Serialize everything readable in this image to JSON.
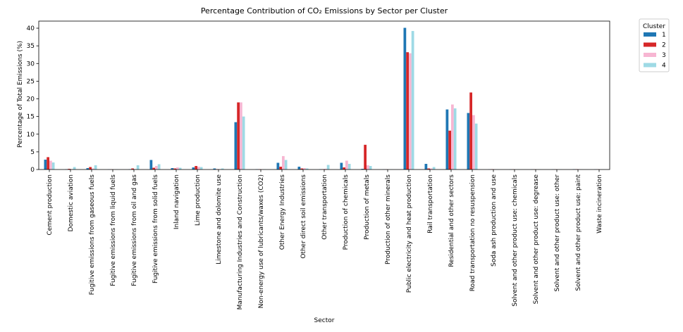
{
  "chart_data": {
    "type": "bar",
    "title": "Percentage Contribution of CO₂ Emissions by Sector per Cluster",
    "xlabel": "Sector",
    "ylabel": "Percentage of Total Emissions (%)",
    "ylim": [
      0,
      42
    ],
    "yticks": [
      0,
      5,
      10,
      15,
      20,
      25,
      30,
      35,
      40
    ],
    "grid": false,
    "legend": {
      "title": "Cluster",
      "placement": "outside-top-right"
    },
    "categories": [
      "Cement production",
      "Domestic aviation",
      "Fugitive emissions from gaseous fuels",
      "Fugitive emissions from liquid fuels",
      "Fugitive emissions from oil and gas",
      "Fugitive emissions from solid fuels",
      "Inland navigation",
      "Lime production",
      "Limestone and dolomite use",
      "Manufacturing Industries and Construction",
      "Non-energy use of lubricants/waxes (CO2)",
      "Other Energy Industries",
      "Other direct soil emissions",
      "Other transportation",
      "Production of chemicals",
      "Production of metals",
      "Production of other minerals",
      "Public electricity and heat production",
      "Rail transportation",
      "Residential and other sectors",
      "Road transportation no resuspension",
      "Soda ash production and use",
      "Solvent and other product use: chemicals",
      "Solvent and other product use: degrease",
      "Solvent and other product use: other",
      "Solvent and other product use: paint",
      "Waste incineration"
    ],
    "series": [
      {
        "name": "1",
        "color": "#1f77b4",
        "values": [
          2.8,
          0.1,
          0.4,
          0.05,
          0.1,
          2.7,
          0.4,
          0.6,
          0.3,
          13.4,
          0.1,
          1.9,
          0.8,
          0.1,
          1.9,
          0.2,
          0.05,
          40.1,
          1.6,
          17.0,
          16.0,
          0.05,
          0.05,
          0.05,
          0.05,
          0.1,
          0.05
        ]
      },
      {
        "name": "2",
        "color": "#d62728",
        "values": [
          3.5,
          0.2,
          0.7,
          0.05,
          0.3,
          0.5,
          0.3,
          1.0,
          0.1,
          19.0,
          0.1,
          0.8,
          0.3,
          0.1,
          0.6,
          7.0,
          0.05,
          33.2,
          0.3,
          11.0,
          21.8,
          0.1,
          0.05,
          0.05,
          0.05,
          0.1,
          0.05
        ]
      },
      {
        "name": "3",
        "color": "#f7b6d2",
        "values": [
          2.5,
          0.1,
          0.3,
          0.05,
          0.1,
          1.0,
          0.6,
          0.8,
          0.1,
          19.0,
          0.1,
          3.8,
          0.4,
          0.2,
          2.5,
          1.2,
          0.05,
          32.9,
          0.3,
          18.4,
          15.4,
          0.1,
          0.05,
          0.05,
          0.05,
          0.1,
          0.05
        ]
      },
      {
        "name": "4",
        "color": "#9edae5",
        "values": [
          2.0,
          0.7,
          1.2,
          0.05,
          1.2,
          1.5,
          0.5,
          0.7,
          0.3,
          15.0,
          0.1,
          2.7,
          0.3,
          1.3,
          1.6,
          1.0,
          0.05,
          39.2,
          0.7,
          17.3,
          13.0,
          0.05,
          0.05,
          0.05,
          0.05,
          0.05,
          0.05
        ]
      }
    ]
  }
}
